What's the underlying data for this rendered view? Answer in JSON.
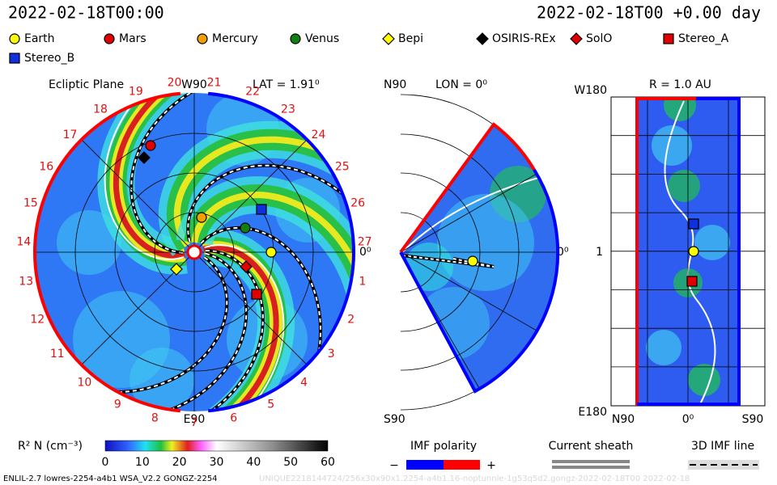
{
  "header": {
    "time_left": "2022-02-18T00:00",
    "time_right": "2022-02-18T00 +0.00 day"
  },
  "legend": [
    {
      "name": "Earth",
      "color": "#ffff00",
      "shape": "circle"
    },
    {
      "name": "Mars",
      "color": "#e00000",
      "shape": "circle"
    },
    {
      "name": "Mercury",
      "color": "#f0a000",
      "shape": "circle"
    },
    {
      "name": "Venus",
      "color": "#108010",
      "shape": "circle"
    },
    {
      "name": "Bepi",
      "color": "#ffff00",
      "shape": "diamond"
    },
    {
      "name": "OSIRIS-REx",
      "color": "#000000",
      "shape": "diamond"
    },
    {
      "name": "SolO",
      "color": "#e00000",
      "shape": "diamond"
    },
    {
      "name": "Stereo_A",
      "color": "#e00000",
      "shape": "square"
    },
    {
      "name": "Stereo_B",
      "color": "#1030e0",
      "shape": "square"
    }
  ],
  "ecliptic": {
    "title": "Ecliptic Plane",
    "lat": "LAT = 1.91⁰",
    "top": "W90",
    "bottom": "E90",
    "right": "0⁰",
    "carrington": [
      "1",
      "2",
      "3",
      "4",
      "5",
      "6",
      "7",
      "8",
      "9",
      "10",
      "11",
      "12",
      "13",
      "14",
      "15",
      "16",
      "17",
      "18",
      "19",
      "20",
      "21",
      "22",
      "23",
      "24",
      "25",
      "26",
      "27"
    ]
  },
  "meridional": {
    "lon": "LON = 0⁰",
    "top": "N90",
    "bottom": "S90",
    "right": "0⁰"
  },
  "radial": {
    "title": "R = 1.0 AU",
    "top": "W180",
    "bottom": "E180",
    "middle": "1",
    "x_left": "N90",
    "x_mid": "0⁰",
    "x_right": "S90"
  },
  "colorbar": {
    "label": "R² N (cm⁻³)",
    "ticks": [
      0,
      10,
      20,
      30,
      40,
      50,
      60
    ]
  },
  "imf": {
    "title": "IMF polarity",
    "minus": "−",
    "plus": "+"
  },
  "sheath": {
    "title": "Current sheath"
  },
  "line3d": {
    "title": "3D IMF line"
  },
  "footer": {
    "left": "ENLIL-2.7 lowres-2254-a4b1 WSA_V2.2 GONGZ-2254",
    "right": "UNIQUE2218144724/256x30x90x1.2254-a4b1.16-noptunnle-1g53q5d2.gongz-2022-02-18T00   2022-02-18"
  }
}
